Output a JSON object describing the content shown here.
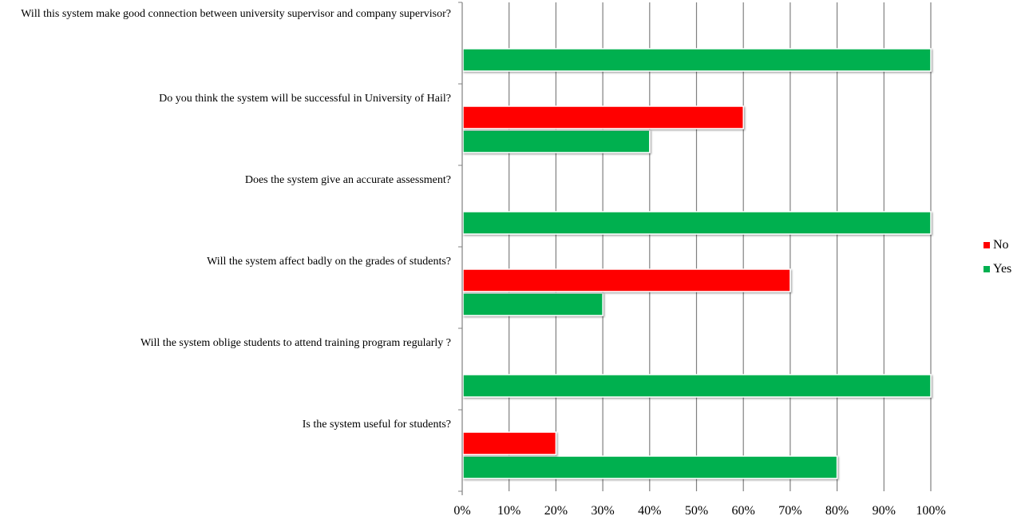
{
  "chart_data": {
    "type": "bar",
    "orientation": "horizontal",
    "categories": [
      "Is the system useful for students?",
      "Will the system oblige students to attend training program regularly ?",
      "Will the system affect badly on the grades of students?",
      "Does the system give an accurate assessment?",
      "Do you think the system will be successful in University of Hail?",
      "Will this system make good connection between university supervisor and company supervisor?"
    ],
    "series": [
      {
        "name": "Yes",
        "color": "#00b050",
        "values": [
          80,
          100,
          30,
          100,
          40,
          100
        ]
      },
      {
        "name": "No",
        "color": "#ff0000",
        "values": [
          20,
          0,
          70,
          0,
          60,
          0
        ]
      }
    ],
    "xlim": [
      0,
      100
    ],
    "x_ticks": [
      "0%",
      "10%",
      "20%",
      "30%",
      "40%",
      "50%",
      "60%",
      "70%",
      "80%",
      "90%",
      "100%"
    ],
    "grid": "vertical",
    "legend": {
      "position": "right",
      "items": [
        {
          "label": "No",
          "color": "#ff0000"
        },
        {
          "label": "Yes",
          "color": "#00b050"
        }
      ]
    }
  }
}
